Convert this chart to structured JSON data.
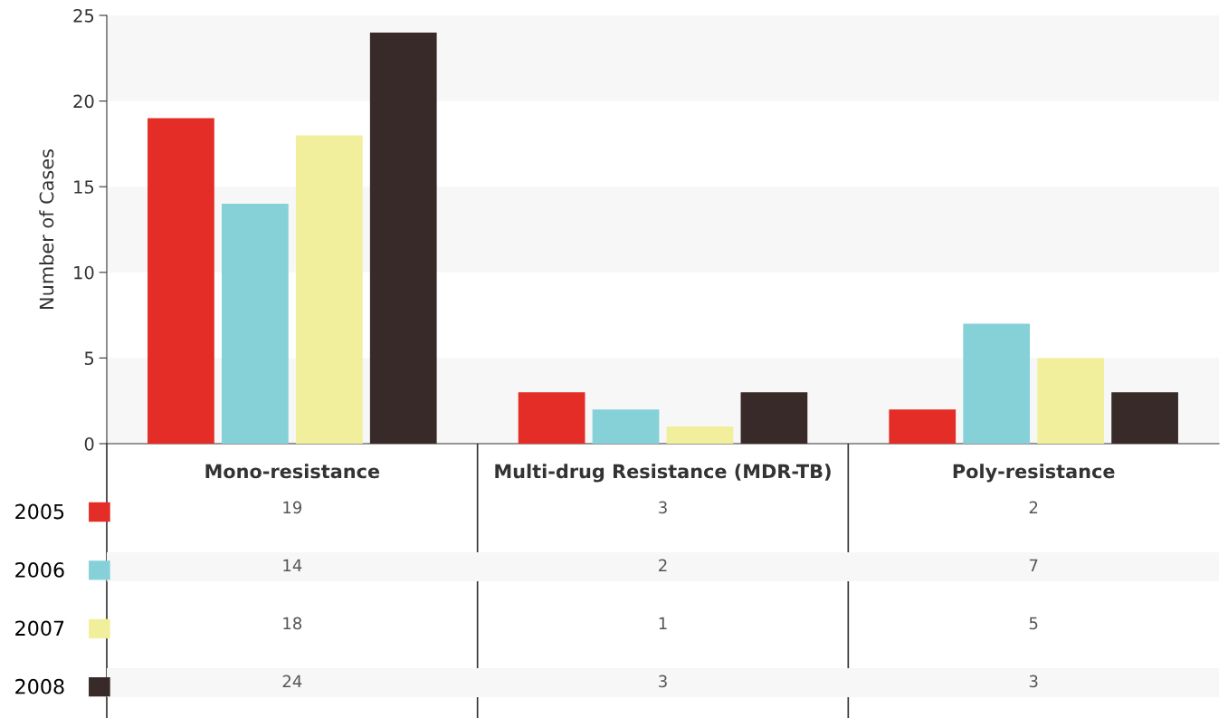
{
  "chart_data": {
    "type": "bar",
    "ylabel": "Number of Cases",
    "categories": [
      "Mono-resistance",
      "Multi-drug Resistance (MDR-TB)",
      "Poly-resistance"
    ],
    "series": [
      {
        "name": "2005",
        "color": "#e32d26",
        "values": [
          19,
          3,
          2
        ]
      },
      {
        "name": "2006",
        "color": "#86d1d8",
        "values": [
          14,
          2,
          7
        ]
      },
      {
        "name": "2007",
        "color": "#f1ef9b",
        "values": [
          18,
          1,
          5
        ]
      },
      {
        "name": "2008",
        "color": "#372a28",
        "values": [
          24,
          3,
          3
        ]
      }
    ],
    "ylim": [
      0,
      25
    ],
    "yticks": [
      0,
      5,
      10,
      15,
      20,
      25
    ],
    "bands": [
      {
        "axis": "y",
        "from": 0,
        "to": 5,
        "color": "#f7f7f7"
      },
      {
        "axis": "y",
        "from": 10,
        "to": 15,
        "color": "#f7f7f7"
      },
      {
        "axis": "y",
        "from": 20,
        "to": 25,
        "color": "#f7f7f7"
      }
    ],
    "legend": "bottom left",
    "data_labels": true
  }
}
